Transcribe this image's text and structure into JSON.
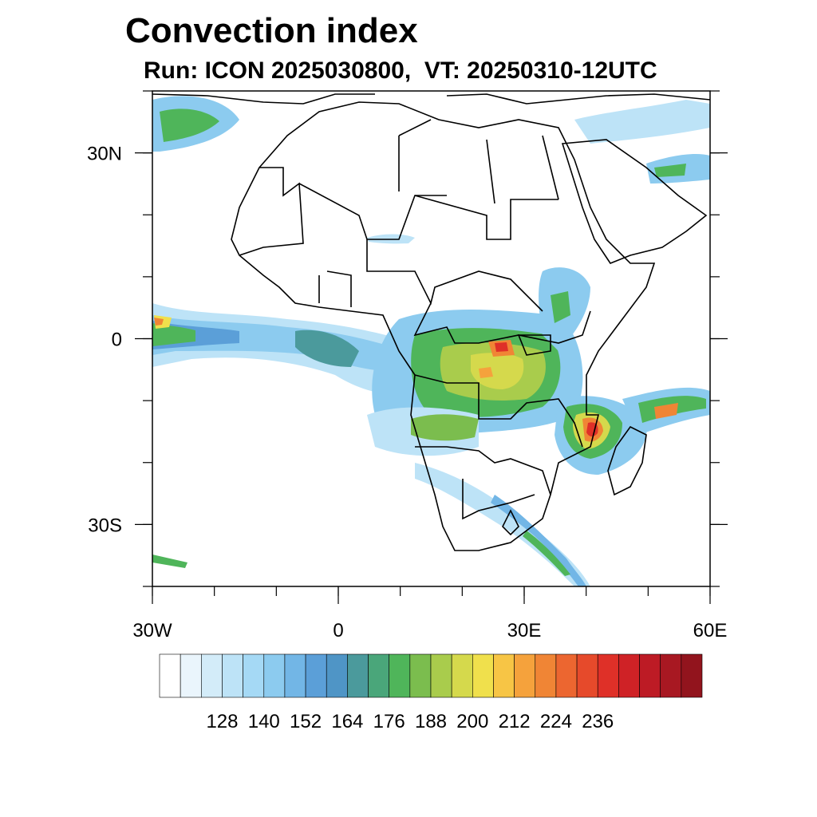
{
  "title": "Convection index",
  "subtitle": "Run: ICON 2025030800,  VT: 20250310-12UTC",
  "map": {
    "lon_range": [
      -30,
      60
    ],
    "lat_range": [
      -40,
      40
    ],
    "lat_ticks": [
      {
        "value": 30,
        "label": "30N"
      },
      {
        "value": 0,
        "label": "0"
      },
      {
        "value": -30,
        "label": "30S"
      }
    ],
    "lon_ticks": [
      {
        "value": -30,
        "label": "30W"
      },
      {
        "value": 0,
        "label": "0"
      },
      {
        "value": 30,
        "label": "30E"
      },
      {
        "value": 60,
        "label": "60E"
      }
    ]
  },
  "colorbar": {
    "colors": [
      "#ffffff",
      "#eaf5fc",
      "#d3ecf9",
      "#bde3f7",
      "#a5d9f5",
      "#8ccbef",
      "#72b6e6",
      "#5b9fd8",
      "#4f95c6",
      "#4b9a9c",
      "#4aa67a",
      "#4fb55a",
      "#7bbd4e",
      "#a9cc4c",
      "#d5d94c",
      "#f0e04c",
      "#f7c545",
      "#f5a23c",
      "#f08535",
      "#ec6630",
      "#e64a2b",
      "#df3028",
      "#cf2226",
      "#bd1b25",
      "#a81822",
      "#92141d"
    ],
    "labels": [
      "128",
      "140",
      "152",
      "164",
      "176",
      "188",
      "200",
      "212",
      "224",
      "236"
    ]
  }
}
